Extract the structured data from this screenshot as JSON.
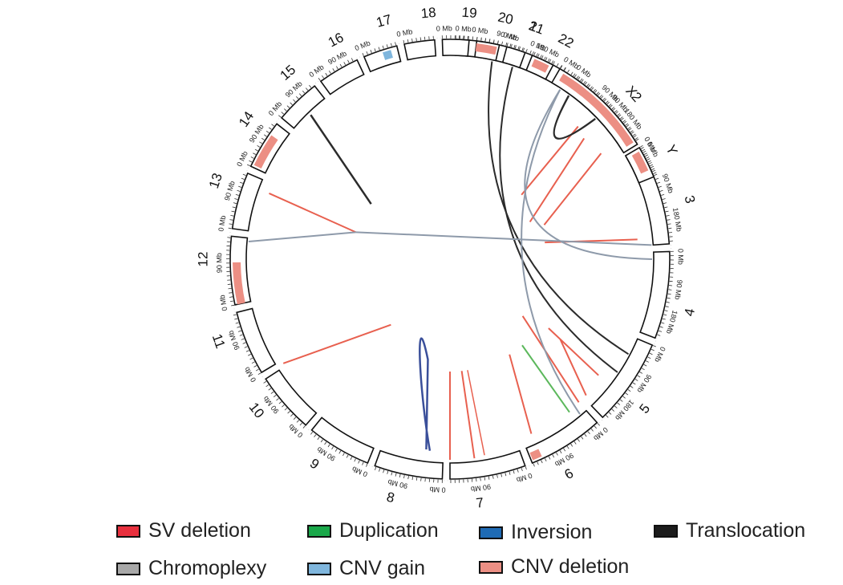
{
  "colors": {
    "sv_deletion": "#e8303e",
    "duplication": "#1aa84a",
    "inversion": "#1f6bb5",
    "translocation": "#1c1c1c",
    "chromoplexy": "#a8a8a8",
    "cnv_gain": "#7fb6dd",
    "cnv_deletion": "#ec8f84",
    "link_deletion": "#e8604f",
    "link_translocation": "#2b2b2b",
    "link_chromoplexy": "#8e9aaa",
    "link_inversion": "#3a4f9a",
    "link_duplication": "#5cb85c"
  },
  "chart_data": {
    "type": "circos",
    "chromosomes": [
      {
        "name": "1",
        "ticks": [
          "0 Mb",
          "90 Mb",
          "180 Mb"
        ]
      },
      {
        "name": "2",
        "ticks": [
          "0 Mb",
          "90 Mb",
          "180 Mb"
        ]
      },
      {
        "name": "3",
        "ticks": [
          "0 Mb",
          "90 Mb",
          "180 Mb"
        ]
      },
      {
        "name": "4",
        "ticks": [
          "0 Mb",
          "90 Mb",
          "180 Mb"
        ]
      },
      {
        "name": "5",
        "ticks": [
          "0 Mb",
          "90 Mb",
          "180 Mb"
        ]
      },
      {
        "name": "6",
        "ticks": [
          "0 Mb",
          "90 Mb"
        ]
      },
      {
        "name": "7",
        "ticks": [
          "0 Mb",
          "90 Mb"
        ]
      },
      {
        "name": "8",
        "ticks": [
          "0 Mb",
          "90 Mb"
        ]
      },
      {
        "name": "9",
        "ticks": [
          "0 Mb",
          "90 Mb"
        ]
      },
      {
        "name": "10",
        "ticks": [
          "0 Mb",
          "90 Mb"
        ]
      },
      {
        "name": "11",
        "ticks": [
          "0 Mb",
          "90 Mb"
        ]
      },
      {
        "name": "12",
        "ticks": [
          "0 Mb",
          "90 Mb"
        ]
      },
      {
        "name": "13",
        "ticks": [
          "0 Mb",
          "90 Mb"
        ]
      },
      {
        "name": "14",
        "ticks": [
          "0 Mb",
          "90 Mb"
        ]
      },
      {
        "name": "15",
        "ticks": [
          "0 Mb",
          "90 Mb"
        ]
      },
      {
        "name": "16",
        "ticks": [
          "0 Mb",
          "90 Mb"
        ]
      },
      {
        "name": "17",
        "ticks": [
          "0 Mb"
        ]
      },
      {
        "name": "18",
        "ticks": [
          "0 Mb"
        ]
      },
      {
        "name": "19",
        "ticks": [
          "0 Mb"
        ]
      },
      {
        "name": "20",
        "ticks": [
          "0 Mb"
        ]
      },
      {
        "name": "21",
        "ticks": [
          "0 Mb"
        ]
      },
      {
        "name": "22",
        "ticks": [
          "0 Mb"
        ]
      },
      {
        "name": "X",
        "ticks": [
          "0 Mb",
          "90 Mb"
        ]
      },
      {
        "name": "Y",
        "ticks": [
          "0 Mb"
        ]
      }
    ],
    "legend": [
      {
        "label": "SV deletion",
        "color_key": "sv_deletion"
      },
      {
        "label": "Duplication",
        "color_key": "duplication"
      },
      {
        "label": "Inversion",
        "color_key": "inversion"
      },
      {
        "label": "Translocation",
        "color_key": "translocation"
      },
      {
        "label": "Chromoplexy",
        "color_key": "chromoplexy"
      },
      {
        "label": "CNV gain",
        "color_key": "cnv_gain"
      },
      {
        "label": "CNV deletion",
        "color_key": "cnv_deletion"
      }
    ],
    "legend_placement": "bottom"
  }
}
